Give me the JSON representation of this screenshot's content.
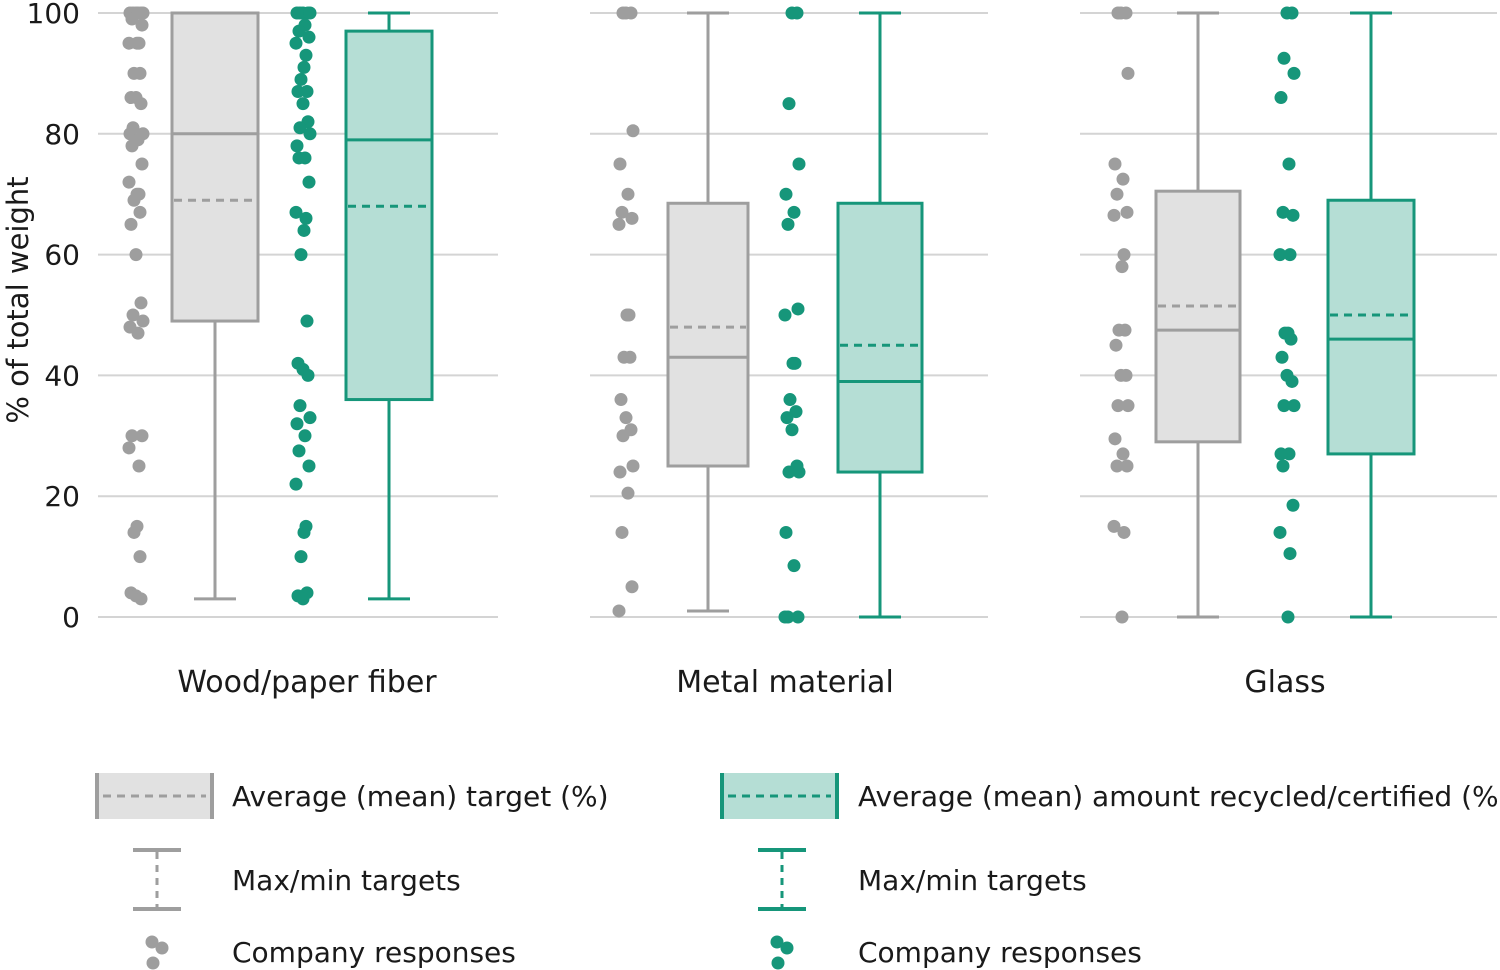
{
  "chart_data": {
    "type": "box",
    "ylabel": "% of total weight",
    "ylim": [
      0,
      100
    ],
    "yticks": [
      0,
      20,
      40,
      60,
      80,
      100
    ],
    "grid": true,
    "colors": {
      "target": "#9e9e9e",
      "target_fill": "#e1e1e1",
      "recycled": "#16967a",
      "recycled_fill": "#b5ded5"
    },
    "categories": [
      {
        "name": "Wood/paper fiber",
        "target": {
          "min": 3,
          "q1": 49,
          "median": 80,
          "mean": 69,
          "q3": 100,
          "max": 100
        },
        "recycled": {
          "min": 3,
          "q1": 36,
          "median": 79,
          "mean": 68,
          "q3": 97,
          "max": 100
        }
      },
      {
        "name": "Metal material",
        "target": {
          "min": 1,
          "q1": 25,
          "median": 43,
          "mean": 48,
          "q3": 68.5,
          "max": 100
        },
        "recycled": {
          "min": 0,
          "q1": 24,
          "median": 39,
          "mean": 45,
          "q3": 68.5,
          "max": 100
        }
      },
      {
        "name": "Glass",
        "target": {
          "min": 0,
          "q1": 29,
          "median": 47.5,
          "mean": 51.5,
          "q3": 70.5,
          "max": 100
        },
        "recycled": {
          "min": 0,
          "q1": 27,
          "median": 46,
          "mean": 50,
          "q3": 69,
          "max": 100
        }
      }
    ],
    "responses": {
      "target": [
        [
          100,
          100,
          100,
          100,
          100,
          100,
          99,
          98,
          95,
          95,
          95,
          90,
          90,
          86,
          86,
          85,
          81,
          80,
          80,
          79,
          78,
          75,
          72,
          70,
          70,
          69,
          67,
          65,
          60,
          52,
          50,
          49,
          48,
          47,
          30,
          30,
          28,
          25,
          15,
          14,
          10,
          4,
          3.5,
          3
        ],
        [
          100,
          100,
          100,
          80.5,
          75,
          70,
          67,
          66,
          65,
          50,
          50,
          43,
          43,
          36,
          33,
          31,
          30,
          25,
          24,
          20.5,
          14,
          5,
          1
        ],
        [
          100,
          100,
          100,
          90,
          75,
          72.5,
          70,
          67,
          66.5,
          60,
          58,
          47.5,
          47.5,
          45,
          40,
          40,
          35,
          35,
          29.5,
          27,
          25,
          25,
          15,
          14,
          0
        ]
      ],
      "recycled": [
        [
          100,
          100,
          100,
          100,
          100,
          98,
          97,
          96,
          95,
          93,
          91,
          89,
          87,
          87,
          85,
          82,
          81,
          80,
          78,
          76,
          76,
          72,
          67,
          66,
          64,
          60,
          49,
          42,
          41,
          40,
          35,
          33,
          32,
          30,
          27.5,
          25,
          22,
          15,
          14,
          10,
          4,
          3.5,
          3
        ],
        [
          100,
          100,
          85,
          75,
          70,
          67,
          65,
          51,
          50,
          42,
          42,
          36,
          34,
          33,
          31,
          25,
          24,
          24,
          14,
          8.5,
          0,
          0,
          0
        ],
        [
          100,
          100,
          92.5,
          90,
          86,
          75,
          67,
          66.5,
          60,
          60,
          47,
          47,
          46,
          43,
          40,
          39,
          35,
          35,
          27,
          27,
          25,
          18.5,
          14,
          10.5,
          0
        ]
      ]
    },
    "legend": [
      {
        "series": "target",
        "box": "Average (mean) target (%)",
        "whisker": "Max/min targets",
        "dots": "Company responses"
      },
      {
        "series": "recycled",
        "box": "Average (mean) amount recycled/certified (%)",
        "whisker": "Max/min targets",
        "dots": "Company responses"
      }
    ]
  }
}
